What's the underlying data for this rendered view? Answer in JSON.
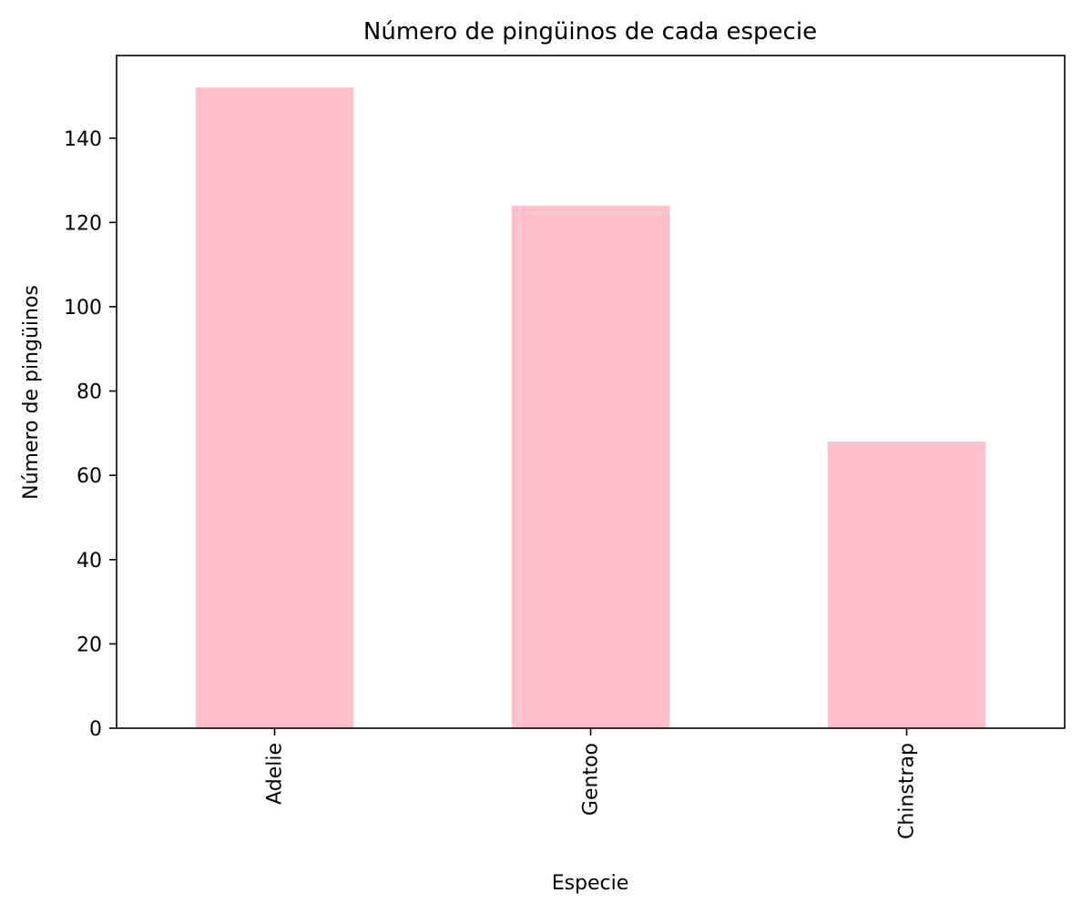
{
  "chart_data": {
    "type": "bar",
    "title": "Número de pingüinos de cada especie",
    "xlabel": "Especie",
    "ylabel": "Número de pingüinos",
    "categories": [
      "Adelie",
      "Gentoo",
      "Chinstrap"
    ],
    "values": [
      152,
      124,
      68
    ],
    "ylim": [
      0,
      159.6
    ],
    "yticks": [
      0,
      20,
      40,
      60,
      80,
      100,
      120,
      140
    ],
    "bar_color": "#ffc0cb",
    "xtick_rotation": "vertical",
    "grid": false,
    "legend": "none"
  }
}
